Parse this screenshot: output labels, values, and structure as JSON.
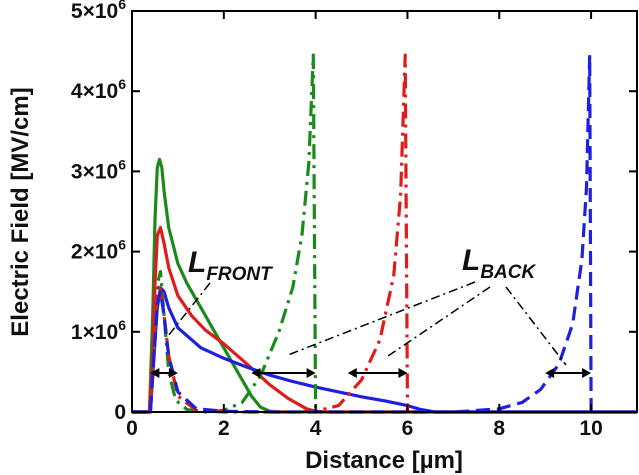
{
  "chart_data": {
    "type": "line",
    "title": "",
    "xlabel": "Distance [µm]",
    "ylabel": "Electric Field [MV/cm]",
    "xlim": [
      0,
      11
    ],
    "ylim": [
      0,
      5000000
    ],
    "grid": false,
    "x_ticks": [
      "0",
      "2",
      "4",
      "6",
      "8",
      "10"
    ],
    "x_tick_values": [
      0,
      2,
      4,
      6,
      8,
      10
    ],
    "y_tick_values": [
      0,
      1000000,
      2000000,
      3000000,
      4000000,
      5000000
    ],
    "y_tick_mantissas": [
      "0",
      "1",
      "2",
      "3",
      "4",
      "5"
    ],
    "y_tick_multiplier": "×10",
    "y_tick_exponent": "6",
    "series": [
      {
        "color": "#1a8a1a",
        "style": "solid",
        "x": [
          0,
          0.38,
          0.45,
          0.5,
          0.55,
          0.6,
          0.65,
          0.7,
          0.8,
          1.0,
          1.2,
          1.5,
          1.8,
          2.0,
          2.3,
          2.6,
          2.8,
          3.0,
          3.2,
          11
        ],
        "y": [
          0,
          0,
          1200000,
          2400000,
          3050000,
          3150000,
          3050000,
          2750000,
          2300000,
          1850000,
          1600000,
          1300000,
          1000000,
          800000,
          500000,
          200000,
          60000,
          10000,
          0,
          0
        ]
      },
      {
        "color": "#e01b1b",
        "style": "solid",
        "x": [
          0,
          0.38,
          0.45,
          0.5,
          0.55,
          0.62,
          0.7,
          0.8,
          1.0,
          1.3,
          1.6,
          2.0,
          2.5,
          3.0,
          3.4,
          3.8,
          4.0,
          4.2,
          11
        ],
        "y": [
          0,
          0,
          700000,
          1600000,
          2200000,
          2300000,
          2100000,
          1800000,
          1450000,
          1200000,
          1020000,
          850000,
          600000,
          340000,
          170000,
          40000,
          10000,
          0,
          0
        ]
      },
      {
        "color": "#1f1fe0",
        "style": "solid",
        "x": [
          0,
          0.4,
          0.48,
          0.55,
          0.62,
          0.7,
          0.8,
          1.0,
          1.5,
          2.0,
          2.5,
          3.0,
          3.5,
          4.0,
          4.5,
          5.0,
          5.5,
          6.0,
          6.3,
          6.6,
          11
        ],
        "y": [
          0,
          0,
          700000,
          1300000,
          1550000,
          1500000,
          1300000,
          1050000,
          800000,
          670000,
          560000,
          460000,
          380000,
          310000,
          250000,
          190000,
          140000,
          80000,
          30000,
          0,
          0
        ]
      },
      {
        "color": "#1a8a1a",
        "style": "dashdot",
        "x": [
          0,
          0.4,
          0.48,
          0.55,
          0.62,
          0.7,
          0.8,
          0.95,
          1.2,
          1.6,
          2.0,
          2.4,
          2.8,
          3.2,
          3.5,
          3.7,
          3.85,
          3.95,
          4.0
        ],
        "y": [
          0,
          0,
          800000,
          1600000,
          1750000,
          1200000,
          500000,
          150000,
          30000,
          0,
          20000,
          120000,
          450000,
          1000000,
          1550000,
          2200000,
          3100000,
          4450000,
          0
        ]
      },
      {
        "color": "#e01b1b",
        "style": "dashdot",
        "x": [
          0,
          0.38,
          0.46,
          0.53,
          0.6,
          0.68,
          0.8,
          1.0,
          1.4,
          2.0,
          2.5,
          3.0,
          3.5,
          4.0,
          4.5,
          5.0,
          5.4,
          5.7,
          5.85,
          5.95,
          6.0
        ],
        "y": [
          0,
          0,
          700000,
          1400000,
          1600000,
          1300000,
          700000,
          200000,
          20000,
          0,
          0,
          0,
          0,
          10000,
          80000,
          400000,
          900000,
          1700000,
          2700000,
          4450000,
          0
        ]
      },
      {
        "color": "#1f1fe0",
        "style": "dashed",
        "x": [
          0,
          0.4,
          0.48,
          0.55,
          0.62,
          0.7,
          0.8,
          1.0,
          1.4,
          2.0,
          3.0,
          4.0,
          5.0,
          6.0,
          7.0,
          8.0,
          8.5,
          8.9,
          9.3,
          9.6,
          9.8,
          9.9,
          9.97,
          10.0
        ],
        "y": [
          0,
          0,
          700000,
          1350000,
          1500000,
          1200000,
          700000,
          250000,
          40000,
          10000,
          0,
          0,
          0,
          0,
          0,
          40000,
          120000,
          280000,
          600000,
          1100000,
          1900000,
          2800000,
          4450000,
          0
        ]
      }
    ],
    "annotations": [
      {
        "main": "L",
        "sub": "FRONT"
      },
      {
        "main": "L",
        "sub": "BACK"
      }
    ]
  }
}
